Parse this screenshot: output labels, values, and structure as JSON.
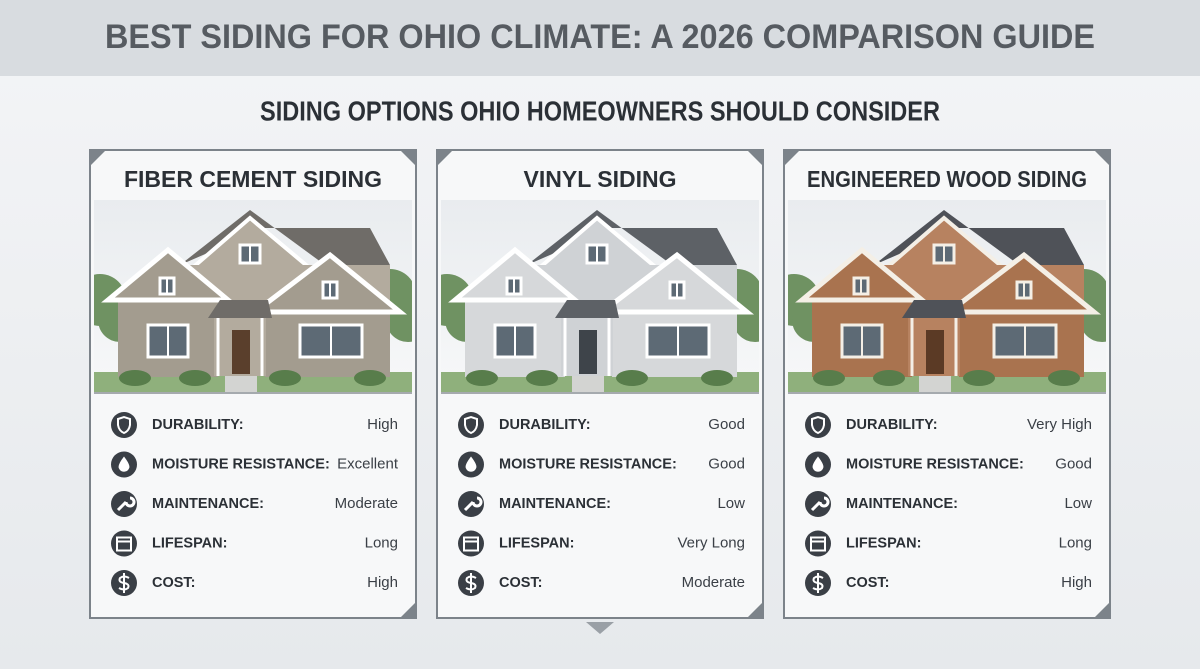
{
  "header": {
    "title": "BEST SIDING FOR OHIO CLIMATE: A 2026 COMPARISON GUIDE"
  },
  "subtitle": "SIDING OPTIONS OHIO HOMEOWNERS SHOULD CONSIDER",
  "cards": [
    {
      "title": "FIBER CEMENT SIDING",
      "rows": [
        {
          "label": "DURABILITY:",
          "value": "High"
        },
        {
          "label": "MOISTURE RESISTANCE:",
          "value": "Excellent"
        },
        {
          "label": "MAINTENANCE:",
          "value": "Moderate"
        },
        {
          "label": "LIFESPAN:",
          "value": "Long"
        },
        {
          "label": "COST:",
          "value": "High"
        }
      ]
    },
    {
      "title": "VINYL SIDING",
      "rows": [
        {
          "label": "DURABILITY:",
          "value": "Good"
        },
        {
          "label": "MOISTURE RESISTANCE:",
          "value": "Good"
        },
        {
          "label": "MAINTENANCE:",
          "value": "Low"
        },
        {
          "label": "LIFESPAN:",
          "value": "Very Long"
        },
        {
          "label": "COST:",
          "value": "Moderate"
        }
      ]
    },
    {
      "title": "ENGINEERED WOOD SIDING",
      "rows": [
        {
          "label": "DURABILITY:",
          "value": "Very High"
        },
        {
          "label": "MOISTURE RESISTANCE:",
          "value": "Good"
        },
        {
          "label": "MAINTENANCE:",
          "value": "Low"
        },
        {
          "label": "LIFESPAN:",
          "value": "Long"
        },
        {
          "label": "COST:",
          "value": "High"
        }
      ]
    }
  ]
}
